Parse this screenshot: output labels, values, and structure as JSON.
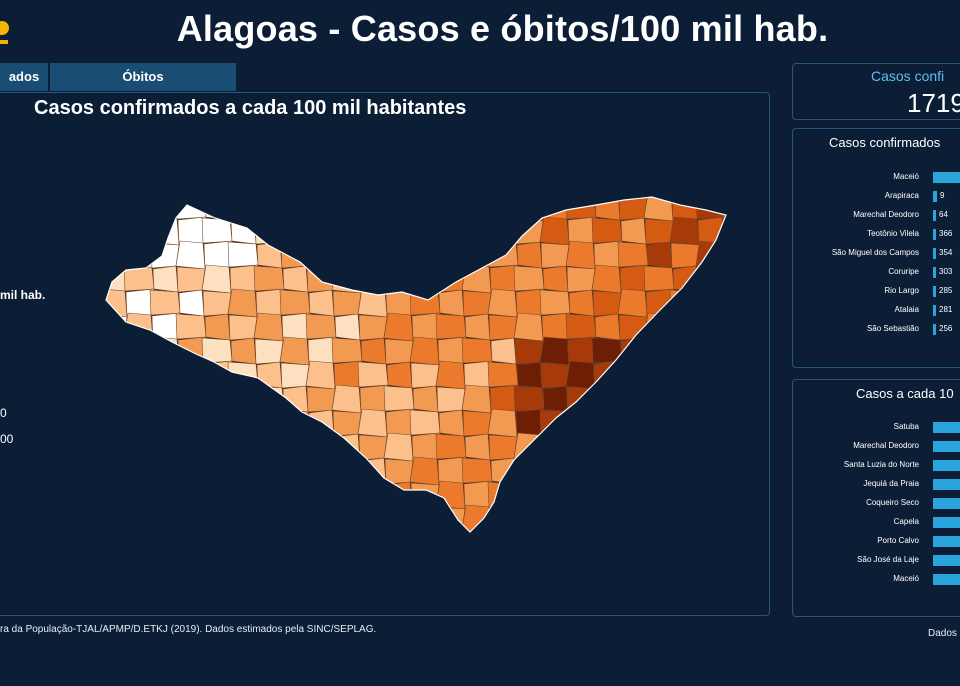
{
  "header": {
    "title": "Alagoas - Casos e óbitos/100 mil hab."
  },
  "tabs": [
    {
      "label": "ados"
    },
    {
      "label": "Óbitos"
    }
  ],
  "map": {
    "title": "Casos confirmados a cada 100 mil habitantes",
    "legend": {
      "title": "mil hab.",
      "values": [
        {
          "label": "0"
        },
        {
          "label": "00"
        }
      ]
    },
    "colors": [
      "#ffffff",
      "#fde0c0",
      "#fbc08c",
      "#f39a52",
      "#ec7a2c",
      "#d55a12",
      "#a83a0a",
      "#6e1e04"
    ],
    "source": "ra da População-TJAL/APMP/D.ETKJ (2019). Dados estimados pela SINC/SEPLAG."
  },
  "kpi": {
    "label": "Casos confi",
    "value": "1719"
  },
  "top_cases": {
    "title": "Casos confirmados",
    "rows": [
      {
        "city": "Maceió",
        "value": "",
        "fraction": 1.0
      },
      {
        "city": "Arapiraca",
        "value": "9",
        "fraction": 0.1
      },
      {
        "city": "Marechal Deodoro",
        "value": "64",
        "fraction": 0.06
      },
      {
        "city": "Teotônio Vilela",
        "value": "366",
        "fraction": 0.03
      },
      {
        "city": "São Miguel dos Campos",
        "value": "354",
        "fraction": 0.03
      },
      {
        "city": "Coruripe",
        "value": "303",
        "fraction": 0.03
      },
      {
        "city": "Rio Largo",
        "value": "285",
        "fraction": 0.03
      },
      {
        "city": "Atalaia",
        "value": "281",
        "fraction": 0.03
      },
      {
        "city": "São Sebastião",
        "value": "256",
        "fraction": 0.02
      }
    ]
  },
  "top_rates": {
    "title": "Casos a cada 10",
    "rows": [
      {
        "city": "Satuba",
        "fraction": 1.0
      },
      {
        "city": "Marechal Deodoro",
        "fraction": 1.0
      },
      {
        "city": "Santa Luzia do Norte",
        "fraction": 1.0
      },
      {
        "city": "Jequiá da Praia",
        "fraction": 1.0
      },
      {
        "city": "Coqueiro Seco",
        "fraction": 1.0
      },
      {
        "city": "Capela",
        "fraction": 1.0
      },
      {
        "city": "Porto Calvo",
        "fraction": 1.0
      },
      {
        "city": "São José da Laje",
        "fraction": 1.0
      },
      {
        "city": "Maceió",
        "fraction": 1.0
      }
    ]
  },
  "footer": {
    "updated": "Dados"
  }
}
